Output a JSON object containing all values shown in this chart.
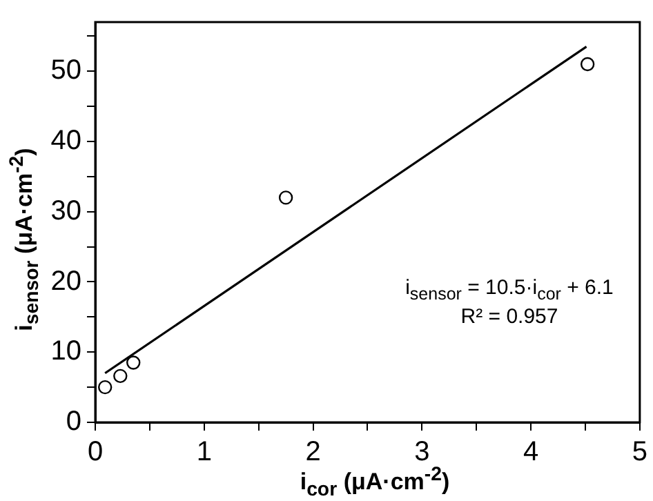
{
  "chart_data": {
    "type": "scatter",
    "xlabel": "i$_{cor}$ (μA·cm$^{-2}$)",
    "ylabel": "i$_{sensor}$ (μA·cm$^{-2}$)",
    "series": [
      {
        "color": "#000000",
        "marker": "circle",
        "x": [
          0.09,
          0.23,
          0.35,
          1.75,
          4.52
        ],
        "values": [
          5.0,
          6.6,
          8.5,
          32.0,
          51.0
        ]
      },
      {
        "type": "line",
        "marker": "none",
        "color": "#000000",
        "x": [
          0.09,
          4.51
        ],
        "values": [
          7.0,
          53.5
        ]
      }
    ],
    "xlim": [
      0,
      5
    ],
    "xticks": [
      0,
      {
        "value": 0.5,
        "label": null
      },
      1,
      {
        "value": 1.5,
        "label": null
      },
      2,
      {
        "value": 2.5,
        "label": null
      },
      3,
      {
        "value": 3.5,
        "label": null
      },
      4,
      {
        "value": 4.5,
        "label": null
      },
      5
    ],
    "ylim": [
      0,
      57
    ],
    "yticks": [
      0,
      {
        "value": 5,
        "label": null
      },
      10,
      {
        "value": 15,
        "label": null
      },
      20,
      {
        "value": 25,
        "label": null
      },
      30,
      {
        "value": 35,
        "label": null
      },
      40,
      {
        "value": 45,
        "label": null
      },
      50,
      {
        "value": 55,
        "label": null
      }
    ],
    "annotations": [
      "i$_{sensor}$ = 10.5·i$_{cor}$ + 6.1",
      "R² = 0.957"
    ],
    "grid": false,
    "legend": false,
    "line_style": "solid"
  }
}
